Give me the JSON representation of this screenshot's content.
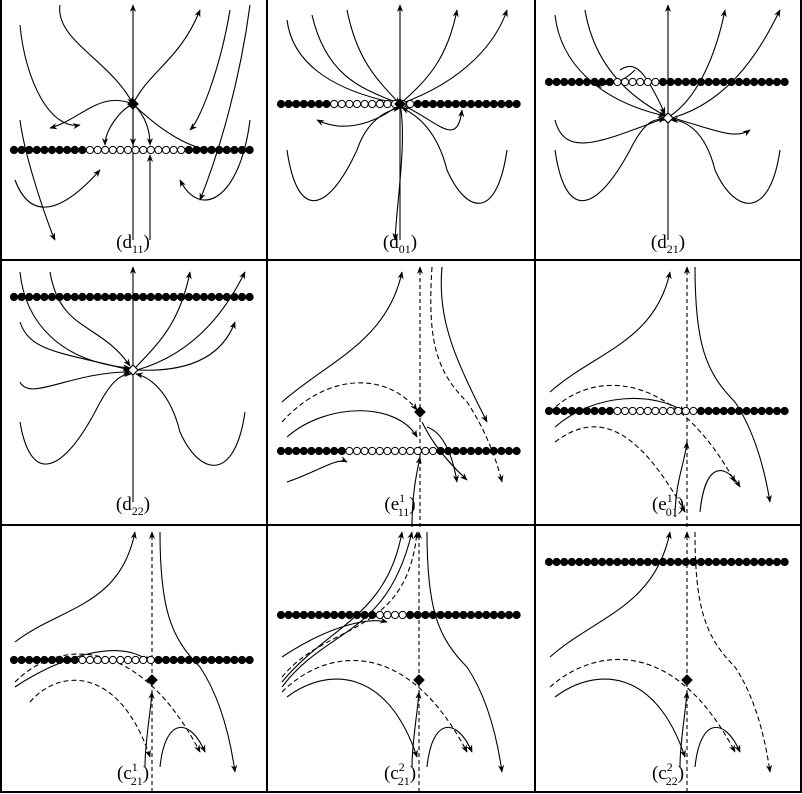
{
  "figure": {
    "panels": [
      {
        "id": "d11",
        "label": {
          "base": "d",
          "sup": "",
          "sub": "11"
        },
        "equilibrium": "filled-diamond"
      },
      {
        "id": "d01",
        "label": {
          "base": "d",
          "sup": "",
          "sub": "01"
        },
        "equilibrium": "filled-diamond"
      },
      {
        "id": "d21",
        "label": {
          "base": "d",
          "sup": "",
          "sub": "21"
        },
        "equilibrium": "hollow-diamond"
      },
      {
        "id": "d22",
        "label": {
          "base": "d",
          "sup": "",
          "sub": "22"
        },
        "equilibrium": "hollow-diamond"
      },
      {
        "id": "e1_11",
        "label": {
          "base": "e",
          "sup": "1",
          "sub": "11"
        },
        "equilibrium": "filled-diamond"
      },
      {
        "id": "e1_01",
        "label": {
          "base": "e",
          "sup": "1",
          "sub": "01"
        },
        "equilibrium": "none"
      },
      {
        "id": "c1_21",
        "label": {
          "base": "c",
          "sup": "1",
          "sub": "21"
        },
        "equilibrium": "filled-diamond"
      },
      {
        "id": "c2_21",
        "label": {
          "base": "c",
          "sup": "2",
          "sub": "21"
        },
        "equilibrium": "filled-diamond"
      },
      {
        "id": "c2_22",
        "label": {
          "base": "c",
          "sup": "2",
          "sub": "22"
        },
        "equilibrium": "filled-diamond"
      }
    ],
    "colors": {
      "ink": "#000000",
      "background": "#ffffff"
    }
  }
}
